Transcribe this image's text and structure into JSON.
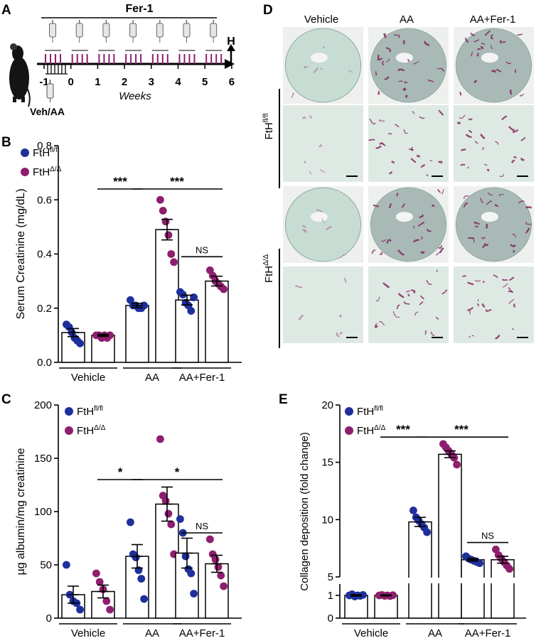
{
  "panels": {
    "a": {
      "letter": "A",
      "drug_label": "Fer-1",
      "injection_label": "Veh/AA",
      "endpoint_label": "H",
      "axis_label": "Weeks",
      "ticks": [
        "-1",
        "0",
        "1",
        "2",
        "3",
        "4",
        "5",
        "6"
      ]
    },
    "b": {
      "letter": "B"
    },
    "c": {
      "letter": "C"
    },
    "d": {
      "letter": "D",
      "columns": [
        "Vehicle",
        "AA",
        "AA+Fer-1"
      ],
      "row_groups": [
        {
          "base": "FtH",
          "sup": "fl/fl"
        },
        {
          "base": "FtH",
          "sup": "Δ/Δ"
        }
      ]
    },
    "e": {
      "letter": "E"
    }
  },
  "legend": [
    {
      "base": "FtH",
      "sup": "fl/fl",
      "color": "#1f2f9b"
    },
    {
      "base": "FtH",
      "sup": "Δ/Δ",
      "color": "#8e1e6e"
    }
  ],
  "chart_data": [
    {
      "id": "B",
      "type": "bar",
      "categories": [
        "Vehicle",
        "AA",
        "AA+Fer-1"
      ],
      "ylabel": "Serum Creatinine (mg/dL)",
      "ylim": [
        0,
        0.8
      ],
      "yticks": [
        "0.0",
        "0.2",
        "0.4",
        "0.6",
        "0.8"
      ],
      "series": [
        {
          "name": "FtHfl/fl",
          "color": "#1f2f9b",
          "means": [
            0.11,
            0.21,
            0.23
          ],
          "sem": [
            0.015,
            0.008,
            0.018
          ],
          "points": [
            [
              0.14,
              0.13,
              0.11,
              0.09,
              0.08,
              0.07
            ],
            [
              0.23,
              0.21,
              0.21,
              0.2,
              0.2,
              0.21
            ],
            [
              0.26,
              0.25,
              0.22,
              0.21,
              0.19,
              0.24
            ]
          ]
        },
        {
          "name": "FtHΔ/Δ",
          "color": "#8e1e6e",
          "means": [
            0.1,
            0.49,
            0.3
          ],
          "sem": [
            0.004,
            0.038,
            0.018
          ],
          "points": [
            [
              0.1,
              0.1,
              0.09,
              0.1,
              0.09,
              0.1
            ],
            [
              0.6,
              0.56,
              0.52,
              0.47,
              0.4,
              0.37
            ],
            [
              0.34,
              0.32,
              0.3,
              0.29,
              0.28,
              0.27
            ]
          ]
        }
      ],
      "annotations": [
        {
          "from": 1,
          "to": 2,
          "level": 0.64,
          "text": "***"
        },
        {
          "from": 2,
          "to": 5,
          "level": 0.64,
          "text": "***"
        },
        {
          "from": 4,
          "to": 5,
          "level": 0.39,
          "text": "NS"
        }
      ]
    },
    {
      "id": "C",
      "type": "bar",
      "categories": [
        "Vehicle",
        "AA",
        "AA+Fer-1"
      ],
      "ylabel": "µg albumin/mg creatinine",
      "ylim": [
        0,
        200
      ],
      "yticks": [
        "0",
        "50",
        "100",
        "150",
        "200"
      ],
      "series": [
        {
          "name": "FtHfl/fl",
          "color": "#1f2f9b",
          "means": [
            22,
            58,
            61
          ],
          "sem": [
            8,
            11,
            14
          ],
          "points": [
            [
              50,
              22,
              16,
              14,
              8
            ],
            [
              90,
              60,
              57,
              45,
              37,
              18
            ],
            [
              93,
              80,
              58,
              46,
              42,
              23
            ]
          ]
        },
        {
          "name": "FtHΔ/Δ",
          "color": "#8e1e6e",
          "means": [
            25,
            107,
            51
          ],
          "sem": [
            6,
            16,
            8
          ],
          "points": [
            [
              42,
              34,
              27,
              16,
              8
            ],
            [
              168,
              115,
              110,
              98,
              88,
              60
            ],
            [
              74,
              60,
              55,
              48,
              40,
              30
            ]
          ]
        }
      ],
      "annotations": [
        {
          "from": 1,
          "to": 2,
          "level": 130,
          "text": "*"
        },
        {
          "from": 2,
          "to": 5,
          "level": 130,
          "text": "*"
        },
        {
          "from": 4,
          "to": 5,
          "level": 80,
          "text": "NS"
        }
      ]
    },
    {
      "id": "E",
      "type": "bar",
      "categories": [
        "Vehicle",
        "AA",
        "AA+Fer-1"
      ],
      "ylabel": "Collagen deposition (fold change)",
      "ylim": [
        0,
        20
      ],
      "axis_break": [
        1.5,
        5
      ],
      "yticks": [
        "0",
        "1",
        "5",
        "10",
        "15",
        "20"
      ],
      "series": [
        {
          "name": "FtHfl/fl",
          "color": "#1f2f9b",
          "means": [
            1.0,
            9.8,
            6.5
          ],
          "sem": [
            0.03,
            0.4,
            0.12
          ],
          "points": [
            [
              1.0,
              1.05,
              0.95,
              1.0,
              0.98,
              1.02
            ],
            [
              10.8,
              10.2,
              9.9,
              9.6,
              9.3,
              8.9
            ],
            [
              6.8,
              6.6,
              6.5,
              6.4,
              6.3,
              6.2
            ]
          ]
        },
        {
          "name": "FtHΔ/Δ",
          "color": "#8e1e6e",
          "means": [
            1.0,
            15.7,
            6.5
          ],
          "sem": [
            0.02,
            0.3,
            0.3
          ],
          "points": [
            [
              1.0,
              1.02,
              0.98,
              1.0,
              0.97,
              1.01
            ],
            [
              16.6,
              16.3,
              16.0,
              15.7,
              15.4,
              14.8
            ],
            [
              7.4,
              6.9,
              6.6,
              6.3,
              6.0,
              5.7
            ]
          ]
        }
      ],
      "annotations": [
        {
          "from": 1,
          "to": 2,
          "level": 17.2,
          "text": "***"
        },
        {
          "from": 2,
          "to": 5,
          "level": 17.2,
          "text": "***"
        },
        {
          "from": 4,
          "to": 5,
          "level": 8.0,
          "text": "NS"
        }
      ]
    }
  ]
}
